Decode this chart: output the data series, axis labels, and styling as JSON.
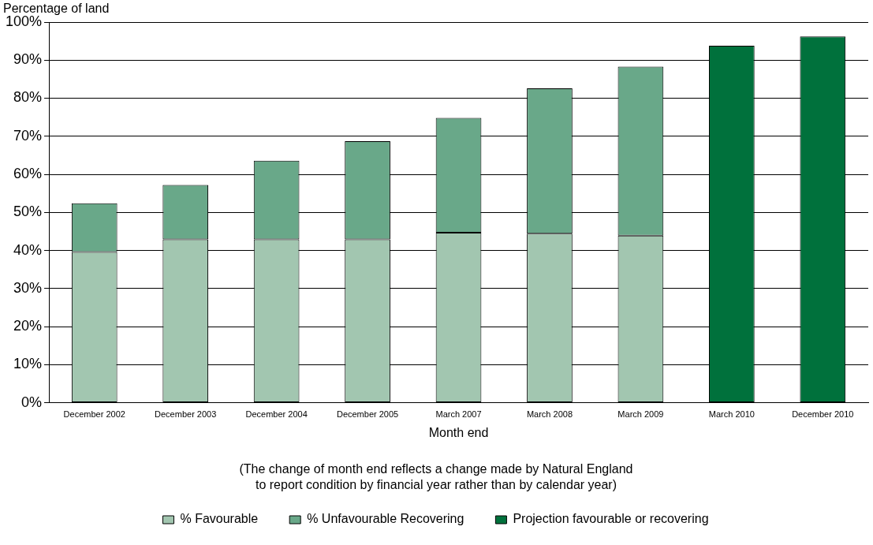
{
  "chart_data": {
    "type": "bar",
    "stacked": true,
    "ylabel": "Percentage of land",
    "xlabel": "Month end",
    "annotations": [
      "(The change of month end reflects a change made by Natural England to report condition by financial year rather than by calendar year)"
    ],
    "categories": [
      "December 2002",
      "December 2003",
      "December 2004",
      "December 2005",
      "March 2007",
      "March 2008",
      "March 2009",
      "March 2010",
      "December 2010"
    ],
    "series": [
      {
        "name": "% Favourable",
        "color": "#a2c6b0",
        "values": [
          39.6,
          42.9,
          42.9,
          42.9,
          44.7,
          44.4,
          43.9,
          null,
          null
        ]
      },
      {
        "name": "% Unfavourable Recovering",
        "color": "#69a889",
        "values": [
          12.8,
          14.3,
          20.7,
          25.8,
          30.1,
          38.2,
          44.4,
          null,
          null
        ]
      },
      {
        "name": "Projection favourable or recovering",
        "color": "#00713c",
        "values": [
          null,
          null,
          null,
          null,
          null,
          null,
          null,
          93.8,
          96.2
        ]
      }
    ],
    "ylim": [
      0,
      100
    ],
    "yticks": [
      {
        "value": 0,
        "label": "0%"
      },
      {
        "value": 10,
        "label": "10%"
      },
      {
        "value": 20,
        "label": "20%"
      },
      {
        "value": 30,
        "label": "30%"
      },
      {
        "value": 40,
        "label": "40%"
      },
      {
        "value": 50,
        "label": "50%"
      },
      {
        "value": 60,
        "label": "60%"
      },
      {
        "value": 70,
        "label": "70%"
      },
      {
        "value": 80,
        "label": "80%"
      },
      {
        "value": 90,
        "label": "90%"
      },
      {
        "value": 100,
        "label": "100%"
      }
    ],
    "grid": "y",
    "legend": "bottom"
  }
}
